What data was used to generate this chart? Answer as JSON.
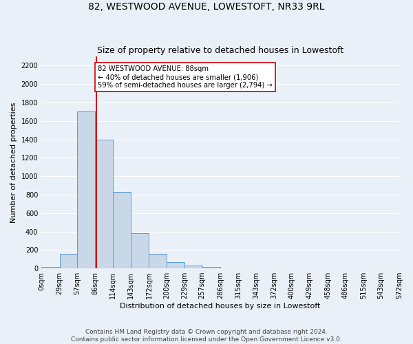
{
  "title": "82, WESTWOOD AVENUE, LOWESTOFT, NR33 9RL",
  "subtitle": "Size of property relative to detached houses in Lowestoft",
  "xlabel": "Distribution of detached houses by size in Lowestoft",
  "ylabel": "Number of detached properties",
  "bin_edges": [
    0,
    29,
    57,
    86,
    114,
    143,
    172,
    200,
    229,
    257,
    286,
    315,
    343,
    372,
    400,
    429,
    458,
    486,
    515,
    543,
    572
  ],
  "bar_heights": [
    15,
    155,
    1700,
    1400,
    830,
    380,
    160,
    65,
    30,
    15,
    0,
    0,
    0,
    0,
    0,
    0,
    0,
    0,
    0,
    0
  ],
  "bar_color": "#c8d8e8",
  "bar_edge_color": "#5b9bd5",
  "property_size": 88,
  "red_line_color": "#cc0000",
  "annotation_text": "82 WESTWOOD AVENUE: 88sqm\n← 40% of detached houses are smaller (1,906)\n59% of semi-detached houses are larger (2,794) →",
  "annotation_box_color": "#ffffff",
  "annotation_box_edge_color": "#cc0000",
  "ylim": [
    0,
    2300
  ],
  "yticks": [
    0,
    200,
    400,
    600,
    800,
    1000,
    1200,
    1400,
    1600,
    1800,
    2000,
    2200
  ],
  "xtick_labels": [
    "0sqm",
    "29sqm",
    "57sqm",
    "86sqm",
    "114sqm",
    "143sqm",
    "172sqm",
    "200sqm",
    "229sqm",
    "257sqm",
    "286sqm",
    "315sqm",
    "343sqm",
    "372sqm",
    "400sqm",
    "429sqm",
    "458sqm",
    "486sqm",
    "515sqm",
    "543sqm",
    "572sqm"
  ],
  "footer_line1": "Contains HM Land Registry data © Crown copyright and database right 2024.",
  "footer_line2": "Contains public sector information licensed under the Open Government Licence v3.0.",
  "background_color": "#eaf0f8",
  "plot_background_color": "#eaf0f8",
  "grid_color": "#ffffff",
  "title_fontsize": 10,
  "subtitle_fontsize": 9,
  "axis_label_fontsize": 8,
  "tick_fontsize": 7,
  "footer_fontsize": 6.5
}
